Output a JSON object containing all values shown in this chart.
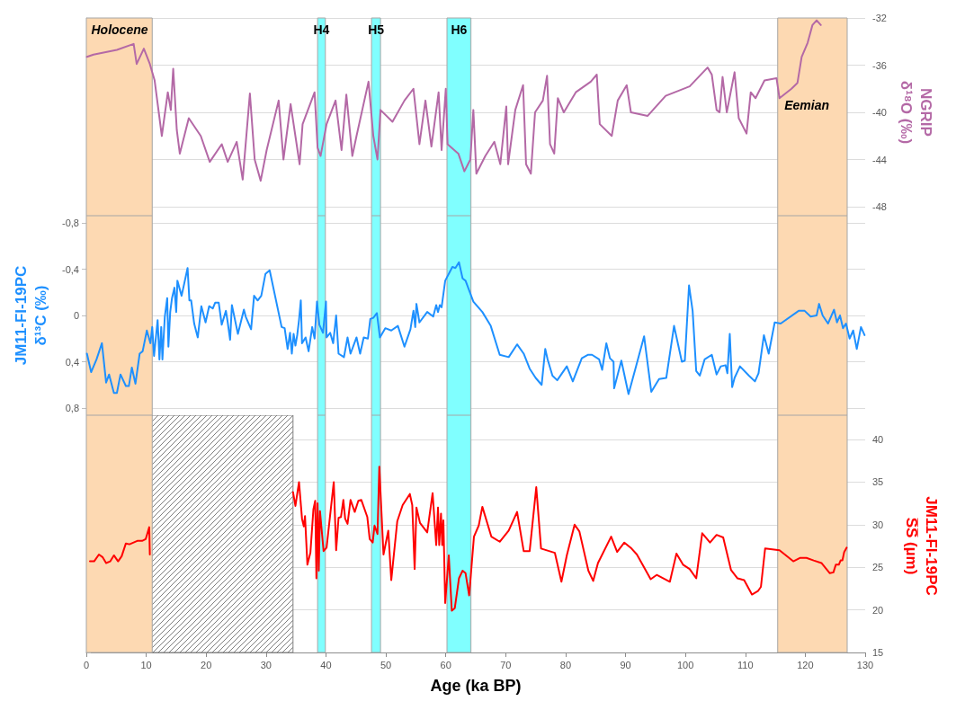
{
  "chart_data": [
    {
      "type": "line",
      "ylabel": "NGRIP\nδ¹⁸O (‰)",
      "xlim": [
        0,
        130
      ],
      "xticks": [
        0,
        10,
        20,
        30,
        40,
        50,
        60,
        70,
        80,
        90,
        100,
        110,
        120,
        130
      ],
      "ylim": [
        -48,
        -32
      ],
      "yticks": [
        -48,
        -44,
        -40,
        -36,
        -32
      ],
      "line_style": "solid",
      "tick_labels": "y",
      "grid": "y",
      "bands": [
        {
          "axis": "x",
          "from": 0,
          "to": 11,
          "label": "Holocene",
          "color": "#fdd9b2"
        },
        {
          "axis": "x",
          "from": 38.6,
          "to": 39.9,
          "label": "H4",
          "color": "#80ffff"
        },
        {
          "axis": "x",
          "from": 47.6,
          "to": 49.1,
          "label": "H5",
          "color": "#80ffff"
        },
        {
          "axis": "x",
          "from": 60.2,
          "to": 64.2,
          "label": "H6",
          "color": "#80ffff"
        },
        {
          "axis": "x",
          "from": 115.4,
          "to": 127,
          "label": "Eemian",
          "color": "#fdd9b2"
        }
      ],
      "series": [
        {
          "color": "#b469a6",
          "x": [
            0.1,
            1.2,
            5.1,
            7.9,
            8.4,
            9.6,
            10.6,
            11.4,
            12.6,
            13.6,
            14.1,
            14.5,
            15.1,
            15.6,
            17.1,
            19.1,
            20.6,
            22.6,
            23.6,
            25.1,
            26.1,
            27.3,
            28.1,
            29.1,
            30.1,
            32.1,
            32.9,
            34.1,
            35.6,
            36.1,
            38.1,
            38.6,
            39.1,
            40.1,
            41.6,
            42.6,
            43.4,
            44.4,
            45.1,
            47.1,
            47.9,
            48.6,
            49.1,
            51.1,
            53.1,
            54.6,
            55.6,
            56.6,
            57.6,
            58.8,
            59.3,
            60,
            60.3,
            62.1,
            63.1,
            64.1,
            64.6,
            65.1,
            66.6,
            68.1,
            69.1,
            70.1,
            70.4,
            71.6,
            72.9,
            73.4,
            74.2,
            74.9,
            76.2,
            76.9,
            77.4,
            78.1,
            78.7,
            79.7,
            81.7,
            84.2,
            85.2,
            85.7,
            87.7,
            88.7,
            90.2,
            90.9,
            93.7,
            96.7,
            100.7,
            103.7,
            104.4,
            105.2,
            105.7,
            106.2,
            106.9,
            108.2,
            108.9,
            110.2,
            110.9,
            111.7,
            113.2,
            115.2,
            115.7,
            117.7,
            118.7,
            119.4,
            120.4,
            121.2,
            121.9,
            122.6
          ],
          "values": [
            -35.3,
            -35.1,
            -34.7,
            -34.2,
            -35.9,
            -34.6,
            -35.9,
            -37.3,
            -42,
            -38.3,
            -39.8,
            -36.3,
            -41.5,
            -43.5,
            -40.5,
            -42,
            -44.2,
            -42.7,
            -44.2,
            -42.5,
            -45.7,
            -38.4,
            -44,
            -45.8,
            -43.2,
            -39,
            -44,
            -39.3,
            -44.4,
            -41,
            -38.3,
            -43,
            -43.7,
            -41,
            -39,
            -43.2,
            -38.5,
            -43.7,
            -42,
            -37.4,
            -42,
            -44,
            -39.8,
            -40.8,
            -39,
            -38,
            -42.7,
            -39,
            -42.9,
            -38.3,
            -43.2,
            -38,
            -42.7,
            -43.5,
            -45,
            -44,
            -39.8,
            -45.2,
            -43.7,
            -42.5,
            -44.4,
            -39.5,
            -44.4,
            -39.8,
            -37.7,
            -44.4,
            -45.2,
            -40,
            -39,
            -36.9,
            -42.7,
            -43.5,
            -38.8,
            -40,
            -38.3,
            -37.4,
            -36.8,
            -41,
            -42,
            -39,
            -37.7,
            -40,
            -40.3,
            -38.6,
            -37.8,
            -36.2,
            -36.8,
            -39.8,
            -40,
            -37,
            -40,
            -36.6,
            -40.5,
            -41.8,
            -38.3,
            -38.8,
            -37.3,
            -37.1,
            -38.8,
            -38,
            -37.5,
            -35.3,
            -34.1,
            -32.6,
            -32.2,
            -32.6
          ]
        }
      ]
    },
    {
      "type": "line",
      "ylabel": "JM11-FI-19PC\nδ¹³C (‰)",
      "xlim": [
        0,
        130
      ],
      "xticks": [
        0,
        10,
        20,
        30,
        40,
        50,
        60,
        70,
        80,
        90,
        100,
        110,
        120,
        130
      ],
      "ylim": [
        0.8,
        -0.8
      ],
      "yticks": [
        {
          "value": -0.8,
          "label": "-0,8"
        },
        {
          "value": -0.4,
          "label": "-0,4"
        },
        0,
        {
          "value": 0.4,
          "label": "0,4"
        },
        {
          "value": 0.8,
          "label": "0,8"
        }
      ],
      "line_style": "solid",
      "tick_labels": "y",
      "grid": "y",
      "bands": [
        {
          "axis": "x",
          "from": 0,
          "to": 11,
          "color": "#fdd9b2"
        },
        {
          "axis": "x",
          "from": 38.6,
          "to": 39.9,
          "color": "#80ffff"
        },
        {
          "axis": "x",
          "from": 47.6,
          "to": 49.1,
          "color": "#80ffff"
        },
        {
          "axis": "x",
          "from": 60.2,
          "to": 64.2,
          "color": "#80ffff"
        },
        {
          "axis": "x",
          "from": 115.4,
          "to": 127,
          "color": "#fdd9b2"
        }
      ],
      "series": [
        {
          "color": "#1e90ff",
          "x": [
            0.1,
            0.8,
            1.7,
            2.6,
            3.3,
            3.8,
            4.6,
            5.1,
            5.7,
            6.6,
            7.1,
            7.6,
            8.2,
            8.9,
            9.4,
            10.1,
            10.7,
            11,
            11.3,
            11.9,
            12.2,
            12.5,
            12.7,
            13.1,
            13.5,
            13.7,
            14,
            14.3,
            14.7,
            15,
            15.2,
            15.9,
            16.9,
            17.2,
            17.5,
            18,
            18.6,
            19.2,
            19.9,
            20.5,
            21.1,
            21.5,
            22.1,
            22.6,
            23.3,
            23.6,
            24,
            24.3,
            25.3,
            26.3,
            26.6,
            27.5,
            28,
            28.6,
            29.2,
            29.9,
            30.6,
            32.6,
            33.1,
            33.6,
            34,
            34.3,
            34.6,
            34.9,
            35.2,
            35.5,
            35.8,
            36,
            36.6,
            37.1,
            37.7,
            38.1,
            38.5,
            38.9,
            39.5,
            40,
            40.1,
            40.7,
            41.2,
            41.7,
            42.1,
            43,
            43.6,
            44.1,
            45.1,
            45.7,
            46.3,
            47,
            47.4,
            47.9,
            48.5,
            49,
            49.9,
            50.9,
            52,
            53.1,
            54.1,
            54.6,
            54.9,
            55.1,
            55.6,
            56.9,
            57.9,
            58.4,
            58.7,
            59,
            59.3,
            59.9,
            61.1,
            61.6,
            62.2,
            62.8,
            63.3,
            64.6,
            66.1,
            67.5,
            69,
            70.5,
            71.9,
            73,
            74,
            75,
            76,
            76.6,
            77,
            77.8,
            78.6,
            80.2,
            81.2,
            82.7,
            83.7,
            84.4,
            85.6,
            86.1,
            86.8,
            87.4,
            88,
            88.1,
            89.3,
            90.5,
            91.7,
            93.1,
            94.3,
            95.6,
            96.8,
            98.1,
            99.4,
            99.9,
            100.6,
            101.2,
            101.8,
            102.4,
            103.2,
            104.4,
            105.2,
            105.9,
            106.7,
            107,
            107.4,
            107.8,
            108.2,
            109.1,
            110.6,
            111.6,
            112.2,
            113.1,
            113.9,
            114.9,
            115.9,
            118.9,
            119.9,
            120.9,
            121.9,
            122.3,
            122.9,
            123.8,
            124.8,
            125.3,
            125.8,
            126.3,
            126.8,
            127.4,
            128,
            128.6,
            129.3,
            129.9
          ],
          "values": [
            0.33,
            0.49,
            0.38,
            0.24,
            0.58,
            0.51,
            0.67,
            0.67,
            0.51,
            0.61,
            0.61,
            0.45,
            0.59,
            0.33,
            0.31,
            0.13,
            0.24,
            0.1,
            0.35,
            0.04,
            0.38,
            0.1,
            0.38,
            0.01,
            -0.15,
            0.27,
            -0.03,
            -0.15,
            -0.24,
            -0.03,
            -0.3,
            -0.17,
            -0.41,
            -0.13,
            -0.13,
            0.07,
            0.19,
            -0.08,
            0.06,
            -0.08,
            -0.06,
            -0.11,
            -0.11,
            0.08,
            -0.04,
            0.06,
            0.21,
            -0.09,
            0.16,
            -0.05,
            0.01,
            0.12,
            -0.17,
            -0.13,
            -0.17,
            -0.36,
            -0.39,
            0.1,
            0.11,
            0.29,
            0.15,
            0.33,
            0.16,
            0.26,
            0.17,
            0.04,
            -0.13,
            0.24,
            0.19,
            0.31,
            0.1,
            0.2,
            -0.12,
            0.08,
            0.15,
            -0.12,
            0.19,
            0.15,
            0.24,
            0,
            0.33,
            0.36,
            0.19,
            0.33,
            0.19,
            0.33,
            0.19,
            0.2,
            0.03,
            0.02,
            -0.02,
            0.19,
            0.11,
            0.13,
            0.09,
            0.27,
            0.12,
            -0.04,
            0.1,
            -0.1,
            0.06,
            -0.03,
            0.01,
            -0.09,
            -0.03,
            -0.09,
            -0.07,
            -0.3,
            -0.42,
            -0.41,
            -0.46,
            -0.32,
            -0.3,
            -0.12,
            -0.03,
            0.09,
            0.34,
            0.36,
            0.25,
            0.33,
            0.46,
            0.54,
            0.6,
            0.29,
            0.38,
            0.52,
            0.56,
            0.44,
            0.57,
            0.37,
            0.34,
            0.34,
            0.38,
            0.47,
            0.24,
            0.37,
            0.4,
            0.63,
            0.39,
            0.68,
            0.45,
            0.18,
            0.66,
            0.55,
            0.54,
            0.09,
            0.4,
            0.39,
            -0.26,
            -0.04,
            0.48,
            0.52,
            0.38,
            0.34,
            0.51,
            0.44,
            0.43,
            0.5,
            0.16,
            0.62,
            0.54,
            0.44,
            0.52,
            0.57,
            0.5,
            0.17,
            0.33,
            0.06,
            0.07,
            -0.04,
            -0.04,
            0.01,
            0,
            -0.1,
            0,
            0.07,
            -0.05,
            0.06,
            0,
            0.11,
            0.07,
            0.2,
            0.13,
            0.29,
            0.1,
            0.17
          ]
        }
      ]
    },
    {
      "type": "line",
      "xlabel": "Age (ka BP)",
      "ylabel": "JM11-FI-19PC\nS̅S̅ (µm)",
      "xlim": [
        0,
        130
      ],
      "xticks": [
        0,
        10,
        20,
        30,
        40,
        50,
        60,
        70,
        80,
        90,
        100,
        110,
        120,
        130
      ],
      "ylim": [
        15,
        40
      ],
      "yticks": [
        15,
        20,
        25,
        30,
        35,
        40
      ],
      "grid": "y",
      "line_style": "solid",
      "bands": [
        {
          "axis": "x",
          "from": 10.6,
          "to": 34.5,
          "color": "#7f7f7f"
        },
        {
          "axis": "x",
          "from": 0,
          "to": 11,
          "color": "#fdd9b2"
        },
        {
          "axis": "x",
          "from": 38.6,
          "to": 39.9,
          "color": "#80ffff"
        },
        {
          "axis": "x",
          "from": 47.6,
          "to": 49.1,
          "color": "#80ffff"
        },
        {
          "axis": "x",
          "from": 60.2,
          "to": 64.2,
          "color": "#80ffff"
        },
        {
          "axis": "x",
          "from": 115.4,
          "to": 127,
          "color": "#fdd9b2"
        }
      ],
      "series": [
        {
          "color": "#ff0000",
          "x": [
            0.6,
            1.3,
            2.1,
            2.7,
            3.3,
            4,
            4.6,
            5.3,
            5.9,
            6.6,
            7.2,
            8.5,
            9.3,
            9.9,
            10.5,
            10.6,
            22,
            34.5,
            34.9,
            35.5,
            36,
            36.3,
            36.5,
            36.9,
            37.4,
            37.9,
            38.2,
            38.4,
            38.6,
            38.8,
            39,
            39.6,
            40.1,
            41.3,
            41.7,
            42.1,
            42.5,
            42.9,
            43.2,
            43.6,
            44.1,
            44.8,
            45.4,
            45.9,
            46.9,
            47.3,
            47.8,
            48.1,
            48.6,
            48.9,
            49.6,
            50.4,
            50.9,
            51.9,
            52.8,
            54,
            54.4,
            54.8,
            55.1,
            55.7,
            56.9,
            57.8,
            58.4,
            58.7,
            58.9,
            59.2,
            59.4,
            59.6,
            59.9,
            60.5,
            61,
            61.5,
            62.2,
            62.8,
            63.3,
            63.9,
            64.7,
            65.5,
            66.1,
            67.6,
            69,
            70.5,
            71.9,
            73,
            74,
            75.1,
            75.9,
            78.2,
            79.3,
            80.2,
            81.5,
            82.3,
            83.8,
            84.6,
            85.4,
            87.6,
            88.6,
            89.8,
            91,
            91.9,
            94.2,
            95.2,
            97.4,
            98.5,
            99.6,
            100.7,
            101.8,
            102.8,
            104.1,
            105.2,
            106.3,
            107.6,
            108.7,
            109.8,
            111.1,
            112.1,
            112.6,
            113.3,
            115.7,
            118,
            119.1,
            120.2,
            121.4,
            122.7,
            124.1,
            124.7,
            125.1,
            125.6,
            125.9,
            126.2,
            126.5,
            126.9
          ],
          "values": [
            25.7,
            25.7,
            26.5,
            26.2,
            25.5,
            25.7,
            26.4,
            25.7,
            26.3,
            27.8,
            27.7,
            28.1,
            28.1,
            28.3,
            29.7,
            26.5,
            null,
            33.8,
            32.2,
            35,
            30.7,
            29.8,
            31,
            25.3,
            26.7,
            31.8,
            32.8,
            23.7,
            32.5,
            24.6,
            31.6,
            26.9,
            27.3,
            35,
            27,
            30.8,
            30.9,
            32.9,
            30.7,
            30.1,
            32.9,
            31.5,
            32.8,
            32.9,
            30.9,
            28.3,
            27.9,
            29.9,
            28.9,
            36.8,
            26.5,
            29.3,
            23.5,
            30.4,
            32.3,
            33.6,
            32.3,
            24.8,
            32,
            30.2,
            29.1,
            33.7,
            27.6,
            32,
            27.6,
            31.3,
            27.6,
            30.5,
            20.8,
            26.4,
            19.9,
            20.2,
            23.7,
            24.6,
            24.3,
            21.7,
            28.6,
            29.9,
            32.1,
            28.6,
            28,
            29.3,
            31.5,
            26.9,
            26.9,
            34.4,
            27.2,
            26.7,
            23.3,
            26.4,
            30,
            29.2,
            24.6,
            23.4,
            25.5,
            28.6,
            26.8,
            27.9,
            27.2,
            26.5,
            23.6,
            24.1,
            23.3,
            26.6,
            25.3,
            24.8,
            23.7,
            29,
            27.9,
            28.8,
            28.5,
            24.7,
            23.7,
            23.5,
            21.8,
            22.2,
            22.7,
            27.2,
            27,
            25.7,
            26.1,
            26.1,
            25.8,
            25.5,
            24.3,
            24.4,
            25.3,
            25.3,
            25.8,
            25.8,
            26.8,
            27.3
          ]
        }
      ]
    }
  ]
}
